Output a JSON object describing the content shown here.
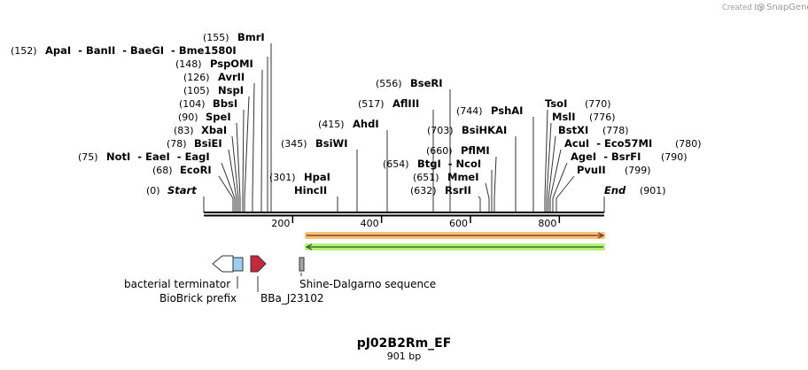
{
  "brand": {
    "created_by": "Created by",
    "app": "SnapGene"
  },
  "map": {
    "title": "pJ02B2Rm_EF",
    "length_label": "901 bp",
    "total_bp": 901,
    "start_label": "Start",
    "start_pos": "(0)",
    "end_label": "End",
    "end_pos": "(901)",
    "ticks": [
      "200",
      "400",
      "600",
      "800"
    ],
    "tick_values": [
      200,
      400,
      600,
      800
    ]
  },
  "enzymes": [
    {
      "id": "ecori",
      "label": "EcoRI",
      "pos": "(68)"
    },
    {
      "id": "noti",
      "label": "NotI  - EaeI  - EagI",
      "pos": "(75)"
    },
    {
      "id": "bsiei",
      "label": "BsiEI",
      "pos": "(78)"
    },
    {
      "id": "xbai",
      "label": "XbaI",
      "pos": "(83)"
    },
    {
      "id": "spei",
      "label": "SpeI",
      "pos": "(90)"
    },
    {
      "id": "bbsi",
      "label": "BbsI",
      "pos": "(104)"
    },
    {
      "id": "nspi",
      "label": "NspI",
      "pos": "(105)"
    },
    {
      "id": "avrii",
      "label": "AvrII",
      "pos": "(126)"
    },
    {
      "id": "pspomi",
      "label": "PspOMI",
      "pos": "(148)"
    },
    {
      "id": "apai",
      "label": "ApaI  - BanII  - BaeGI  - Bme1580I",
      "pos": "(152)"
    },
    {
      "id": "bmri",
      "label": "BmrI",
      "pos": "(155)"
    },
    {
      "id": "hpai",
      "label": "HpaI",
      "pos": "(301)"
    },
    {
      "id": "hincii",
      "label": "HincII",
      "pos": ""
    },
    {
      "id": "bsiwi",
      "label": "BsiWI",
      "pos": "(345)"
    },
    {
      "id": "ahdi",
      "label": "AhdI",
      "pos": "(415)"
    },
    {
      "id": "afliii",
      "label": "AflIII",
      "pos": "(517)"
    },
    {
      "id": "bseri",
      "label": "BseRI",
      "pos": "(556)"
    },
    {
      "id": "bsihkai",
      "label": "BsiHKAI",
      "pos": "(703)"
    },
    {
      "id": "pflmi",
      "label": "PflMI",
      "pos": "(660)"
    },
    {
      "id": "btgi",
      "label": "BtgI  - NcoI",
      "pos": "(654)"
    },
    {
      "id": "mmei",
      "label": "MmeI",
      "pos": "(651)"
    },
    {
      "id": "rsrii",
      "label": "RsrII",
      "pos": "(632)"
    },
    {
      "id": "pshai",
      "label": "PshAI",
      "pos": "(744)"
    },
    {
      "id": "tsoi",
      "label": "TsoI",
      "pos": "(770)"
    },
    {
      "id": "msli",
      "label": "MslI",
      "pos": "(776)"
    },
    {
      "id": "bstxi",
      "label": "BstXI",
      "pos": "(778)"
    },
    {
      "id": "acui",
      "label": "AcuI  - Eco57MI",
      "pos": "(780)"
    },
    {
      "id": "agei",
      "label": "AgeI  - BsrFI",
      "pos": "(790)"
    },
    {
      "id": "pvuii",
      "label": "PvuII",
      "pos": "(799)"
    }
  ],
  "features": {
    "bacterial_terminator": "bacterial terminator",
    "biobrick_prefix": "BioBrick prefix",
    "promoter": "BBa_J23102",
    "shine_dalgarno": "Shine-Dalgarno sequence"
  },
  "colors": {
    "orange_bar": "#f5c27c",
    "green_bar": "#b8f078",
    "promoter": "#c8283c",
    "prefix": "#9ccff5",
    "sd": "#a6a6a6"
  }
}
